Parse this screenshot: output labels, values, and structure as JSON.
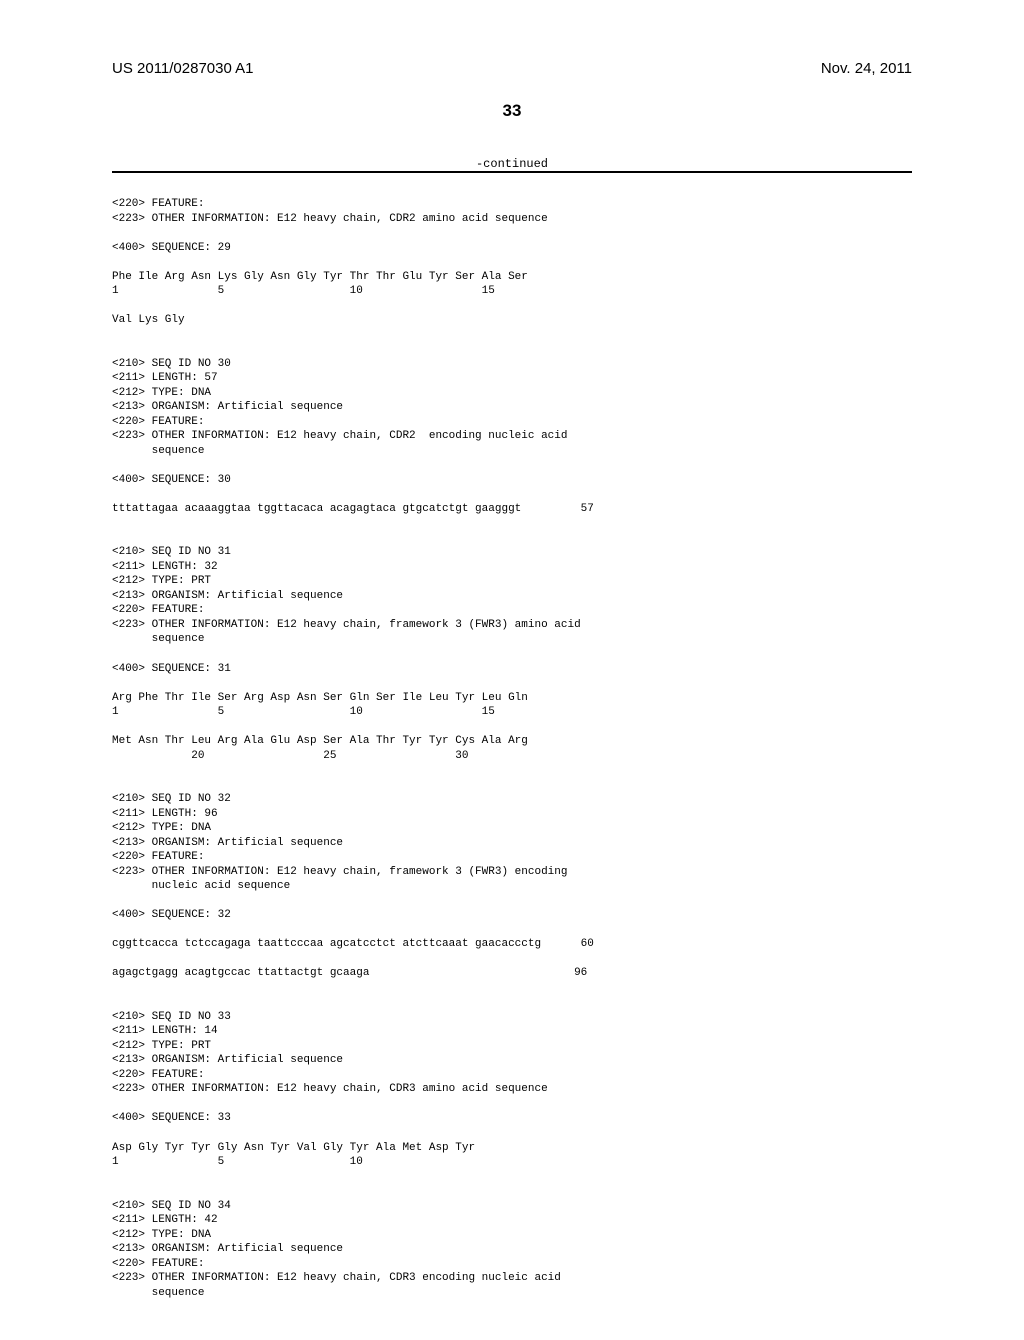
{
  "header": {
    "pubnum": "US 2011/0287030 A1",
    "pubdate": "Nov. 24, 2011",
    "pagenum": "33"
  },
  "continued": "-continued",
  "content": "<220> FEATURE:\n<223> OTHER INFORMATION: E12 heavy chain, CDR2 amino acid sequence\n\n<400> SEQUENCE: 29\n\nPhe Ile Arg Asn Lys Gly Asn Gly Tyr Thr Thr Glu Tyr Ser Ala Ser\n1               5                   10                  15\n\nVal Lys Gly\n\n\n<210> SEQ ID NO 30\n<211> LENGTH: 57\n<212> TYPE: DNA\n<213> ORGANISM: Artificial sequence\n<220> FEATURE:\n<223> OTHER INFORMATION: E12 heavy chain, CDR2  encoding nucleic acid\n      sequence\n\n<400> SEQUENCE: 30\n\ntttattagaa acaaaggtaa tggttacaca acagagtaca gtgcatctgt gaagggt         57\n\n\n<210> SEQ ID NO 31\n<211> LENGTH: 32\n<212> TYPE: PRT\n<213> ORGANISM: Artificial sequence\n<220> FEATURE:\n<223> OTHER INFORMATION: E12 heavy chain, framework 3 (FWR3) amino acid\n      sequence\n\n<400> SEQUENCE: 31\n\nArg Phe Thr Ile Ser Arg Asp Asn Ser Gln Ser Ile Leu Tyr Leu Gln\n1               5                   10                  15\n\nMet Asn Thr Leu Arg Ala Glu Asp Ser Ala Thr Tyr Tyr Cys Ala Arg\n            20                  25                  30\n\n\n<210> SEQ ID NO 32\n<211> LENGTH: 96\n<212> TYPE: DNA\n<213> ORGANISM: Artificial sequence\n<220> FEATURE:\n<223> OTHER INFORMATION: E12 heavy chain, framework 3 (FWR3) encoding\n      nucleic acid sequence\n\n<400> SEQUENCE: 32\n\ncggttcacca tctccagaga taattcccaa agcatcctct atcttcaaat gaacaccctg      60\n\nagagctgagg acagtgccac ttattactgt gcaaga                               96\n\n\n<210> SEQ ID NO 33\n<211> LENGTH: 14\n<212> TYPE: PRT\n<213> ORGANISM: Artificial sequence\n<220> FEATURE:\n<223> OTHER INFORMATION: E12 heavy chain, CDR3 amino acid sequence\n\n<400> SEQUENCE: 33\n\nAsp Gly Tyr Tyr Gly Asn Tyr Val Gly Tyr Ala Met Asp Tyr\n1               5                   10\n\n\n<210> SEQ ID NO 34\n<211> LENGTH: 42\n<212> TYPE: DNA\n<213> ORGANISM: Artificial sequence\n<220> FEATURE:\n<223> OTHER INFORMATION: E12 heavy chain, CDR3 encoding nucleic acid\n      sequence"
}
